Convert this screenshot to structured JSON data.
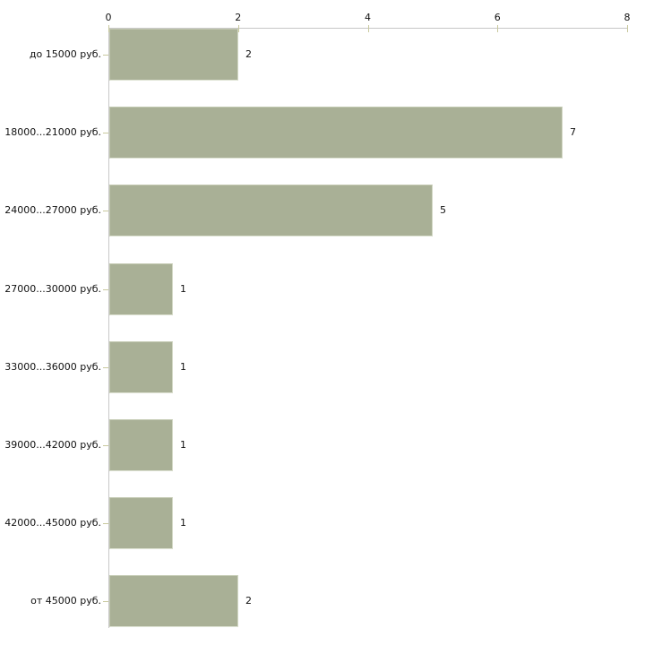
{
  "chart_data": {
    "type": "bar",
    "orientation": "horizontal",
    "title": "",
    "xlabel": "",
    "ylabel": "",
    "categories": [
      "до 15000 руб.",
      "18000...21000 руб.",
      "24000...27000 руб.",
      "27000...30000 руб.",
      "33000...36000 руб.",
      "39000...42000 руб.",
      "42000...45000 руб.",
      "от 45000 руб."
    ],
    "values": [
      2,
      7,
      5,
      1,
      1,
      1,
      1,
      2
    ],
    "value_labels": [
      "2",
      "7",
      "5",
      "1",
      "1",
      "1",
      "1",
      "2"
    ],
    "xlim": [
      0,
      8
    ],
    "xticks": [
      0,
      2,
      4,
      6,
      8
    ],
    "xtick_labels": [
      "0",
      "2",
      "4",
      "6",
      "8"
    ],
    "grid": false,
    "legend": false,
    "axis_position": "top",
    "bar_color": "#a9b096",
    "axis_color": "#c7c7c7",
    "tick_color": "#c9c99e",
    "text_color": "#111111",
    "background_color": "#ffffff"
  }
}
